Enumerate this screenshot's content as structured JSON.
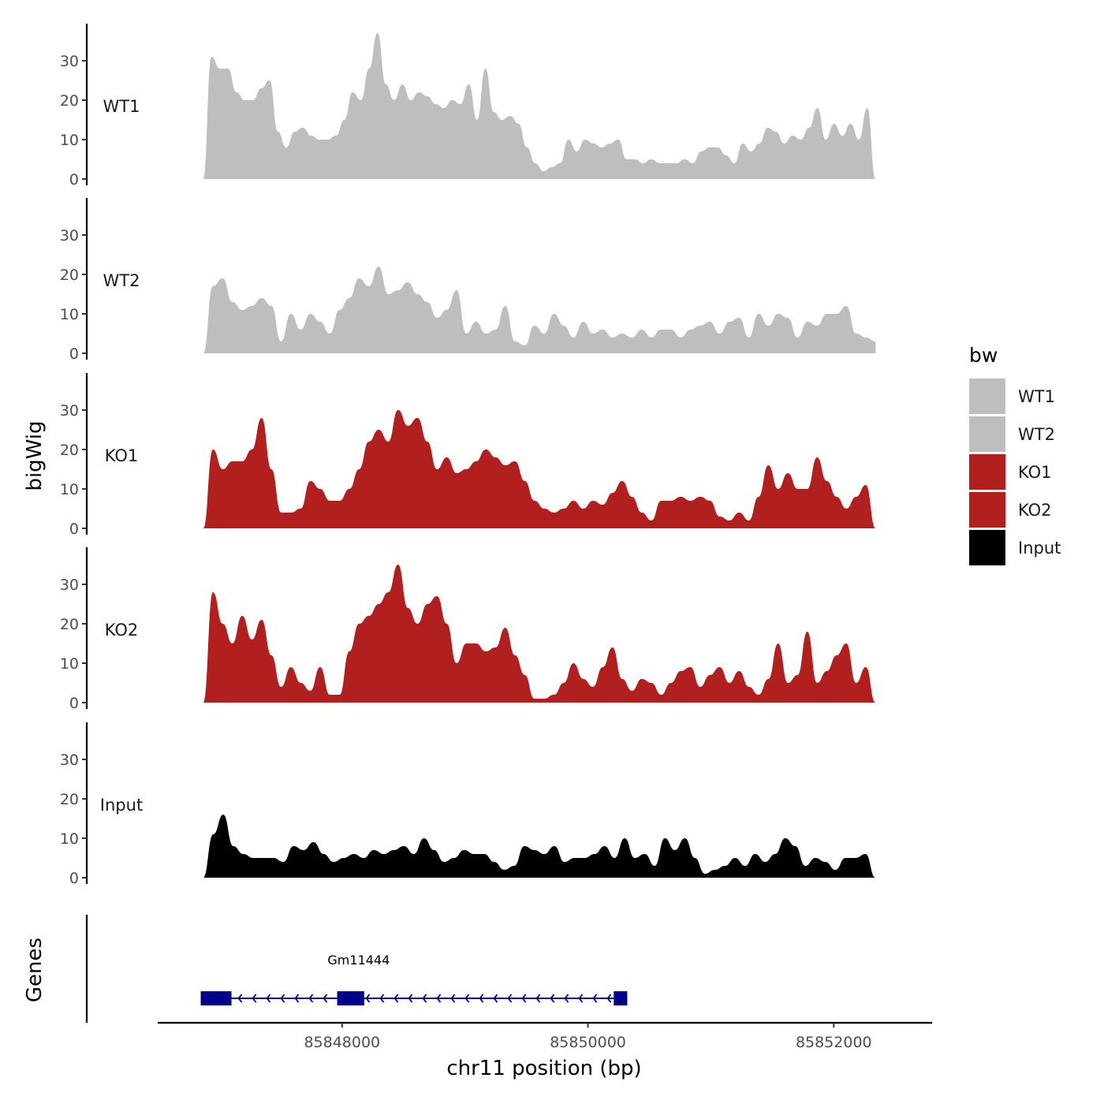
{
  "chart_data": {
    "type": "area",
    "chromosome": "chr11",
    "xlabel": "chr11 position (bp)",
    "ylabel_tracks": "bigWig",
    "ylabel_genes": "Genes",
    "xlim": [
      85846500,
      85852800
    ],
    "x_ticks": [
      85848000,
      85850000,
      85852000
    ],
    "x_tick_labels": [
      "85848000",
      "85850000",
      "85852000"
    ],
    "ylim": [
      0,
      39
    ],
    "y_ticks": [
      0,
      10,
      20,
      30
    ],
    "y_tick_labels": [
      "0",
      "10",
      "20",
      "30"
    ],
    "data_range": [
      85846870,
      85852340
    ],
    "legend": {
      "title": "bw",
      "entries": [
        {
          "label": "WT1",
          "color": "#bebebe"
        },
        {
          "label": "WT2",
          "color": "#bebebe"
        },
        {
          "label": "KO1",
          "color": "#b21f1f"
        },
        {
          "label": "KO2",
          "color": "#b21f1f"
        },
        {
          "label": "Input",
          "color": "#000000"
        }
      ]
    },
    "series": [
      {
        "name": "WT1",
        "color": "#bebebe",
        "values": [
          0,
          31,
          28,
          28,
          22,
          20,
          20,
          23,
          25,
          12,
          8,
          12,
          13,
          11,
          10,
          10,
          11,
          15,
          22,
          20,
          28,
          37,
          24,
          20,
          24,
          20,
          22,
          21,
          19,
          18,
          20,
          19,
          24,
          15,
          28,
          17,
          15,
          16,
          14,
          8,
          4,
          2,
          3,
          4,
          10,
          7,
          10,
          9,
          8,
          9,
          10,
          5,
          5,
          4,
          5,
          4,
          4,
          4,
          5,
          4,
          7,
          8,
          8,
          6,
          4,
          9,
          7,
          9,
          13,
          12,
          9,
          11,
          10,
          13,
          18,
          10,
          14,
          11,
          14,
          10,
          18,
          0
        ]
      },
      {
        "name": "WT2",
        "color": "#bebebe",
        "values": [
          0,
          17,
          19,
          13,
          11,
          12,
          14,
          12,
          3,
          10,
          6,
          10,
          8,
          5,
          11,
          14,
          19,
          17,
          22,
          15,
          16,
          18,
          15,
          13,
          9,
          11,
          16,
          5,
          8,
          5,
          6,
          12,
          3,
          2,
          7,
          5,
          10,
          7,
          4,
          8,
          5,
          6,
          4,
          5,
          4,
          6,
          4,
          6,
          6,
          4,
          6,
          7,
          8,
          5,
          8,
          9,
          4,
          10,
          7,
          10,
          9,
          4,
          8,
          7,
          10,
          10,
          12,
          5,
          4,
          3
        ]
      },
      {
        "name": "KO1",
        "color": "#b21f1f",
        "values": [
          0,
          20,
          15,
          17,
          17,
          20,
          28,
          15,
          4,
          4,
          5,
          12,
          10,
          7,
          7,
          10,
          15,
          22,
          25,
          22,
          30,
          26,
          28,
          22,
          15,
          18,
          14,
          15,
          17,
          20,
          18,
          16,
          17,
          12,
          7,
          5,
          4,
          5,
          7,
          5,
          7,
          6,
          9,
          12,
          8,
          4,
          2,
          7,
          7,
          8,
          7,
          8,
          7,
          3,
          2,
          4,
          2,
          8,
          16,
          10,
          14,
          10,
          10,
          18,
          12,
          8,
          5,
          8,
          11,
          0
        ]
      },
      {
        "name": "KO2",
        "color": "#b21f1f",
        "values": [
          0,
          28,
          20,
          15,
          22,
          16,
          21,
          12,
          4,
          9,
          5,
          3,
          9,
          2,
          2,
          13,
          20,
          22,
          25,
          28,
          35,
          24,
          20,
          25,
          27,
          20,
          10,
          15,
          15,
          13,
          14,
          19,
          12,
          7,
          1,
          1,
          2,
          5,
          10,
          6,
          4,
          9,
          14,
          6,
          3,
          6,
          5,
          2,
          5,
          8,
          9,
          4,
          7,
          9,
          5,
          8,
          4,
          2,
          6,
          15,
          5,
          7,
          18,
          5,
          8,
          12,
          15,
          5,
          9,
          0
        ]
      },
      {
        "name": "Input",
        "color": "#000000",
        "values": [
          0,
          11,
          16,
          8,
          6,
          5,
          5,
          5,
          4,
          8,
          7,
          9,
          6,
          4,
          5,
          6,
          5,
          7,
          6,
          7,
          8,
          6,
          10,
          7,
          4,
          5,
          7,
          6,
          6,
          4,
          2,
          3,
          8,
          7,
          6,
          8,
          4,
          5,
          5,
          6,
          8,
          5,
          10,
          5,
          6,
          3,
          10,
          7,
          10,
          5,
          1,
          2,
          3,
          5,
          3,
          6,
          4,
          6,
          10,
          8,
          3,
          5,
          4,
          2,
          5,
          5,
          6,
          0
        ]
      }
    ],
    "genes": [
      {
        "name": "Gm11444",
        "strand": "-",
        "start": 85846850,
        "end": 85850320,
        "exons": [
          [
            85846850,
            85847100
          ],
          [
            85847960,
            85848180
          ],
          [
            85850210,
            85850320
          ]
        ]
      }
    ]
  }
}
